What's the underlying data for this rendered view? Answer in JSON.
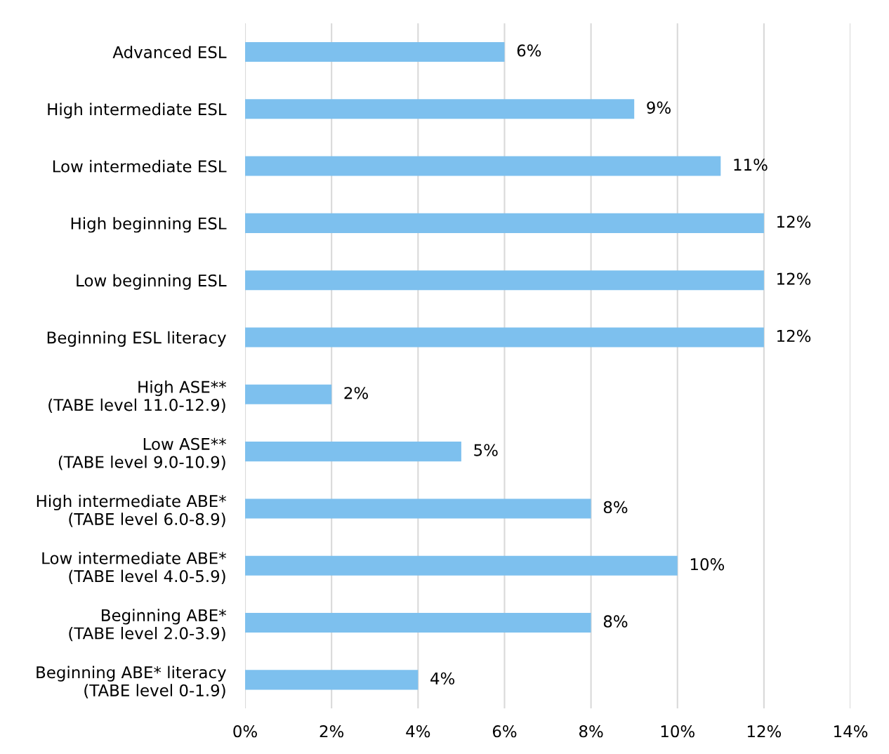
{
  "chart_data": {
    "type": "bar",
    "orientation": "horizontal",
    "categories": [
      "Advanced ESL",
      "High intermediate ESL",
      "Low intermediate ESL",
      "High beginning ESL",
      "Low beginning ESL",
      "Beginning ESL literacy",
      "High ASE**\n(TABE level 11.0-12.9)",
      "Low ASE**\n(TABE level 9.0-10.9)",
      "High intermediate ABE*\n(TABE level 6.0-8.9)",
      "Low intermediate ABE*\n(TABE level 4.0-5.9)",
      "Beginning ABE*\n(TABE level 2.0-3.9)",
      "Beginning ABE* literacy\n(TABE level 0-1.9)"
    ],
    "values": [
      6,
      9,
      11,
      12,
      12,
      12,
      2,
      5,
      8,
      10,
      8,
      4
    ],
    "value_labels": [
      "6%",
      "9%",
      "11%",
      "12%",
      "12%",
      "12%",
      "2%",
      "5%",
      "8%",
      "10%",
      "8%",
      "4%"
    ],
    "color": "#7dc0ee",
    "xlim": [
      0,
      14
    ],
    "xticks": [
      {
        "value": 0,
        "label": "0%"
      },
      {
        "value": 2,
        "label": "2%"
      },
      {
        "value": 4,
        "label": "4%"
      },
      {
        "value": 6,
        "label": "6%"
      },
      {
        "value": 8,
        "label": "8%"
      },
      {
        "value": 10,
        "label": "10%"
      },
      {
        "value": 12,
        "label": "12%"
      },
      {
        "value": 14,
        "label": "14%"
      }
    ],
    "grid": "x"
  }
}
